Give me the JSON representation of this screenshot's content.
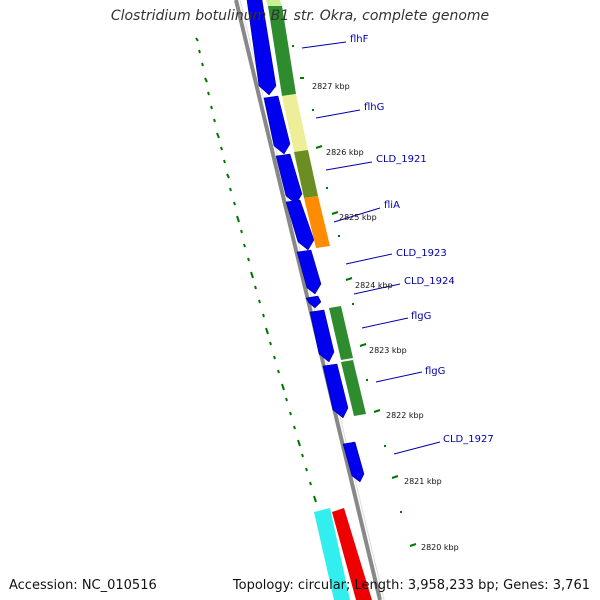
{
  "title": "Clostridium botulinum B1 str. Okra, complete genome",
  "footer": {
    "accession": "Accession: NC_010516",
    "topology": "Topology: circular; Length: 3,958,233 bp; Genes: 3,761"
  },
  "colors": {
    "backbone": "#888888",
    "gene_blue": "#0000ee",
    "tick_green": "#007700",
    "label_blue": "#0000aa"
  },
  "gene_labels": [
    "flhF",
    "flhG",
    "CLD_1921",
    "fliA",
    "CLD_1923",
    "CLD_1924",
    "flgG",
    "flgG",
    "CLD_1927"
  ],
  "ticks": [
    "2827 kbp",
    "2826 kbp",
    "2825 kbp",
    "2824 kbp",
    "2823 kbp",
    "2822 kbp",
    "2821 kbp",
    "2820 kbp"
  ]
}
